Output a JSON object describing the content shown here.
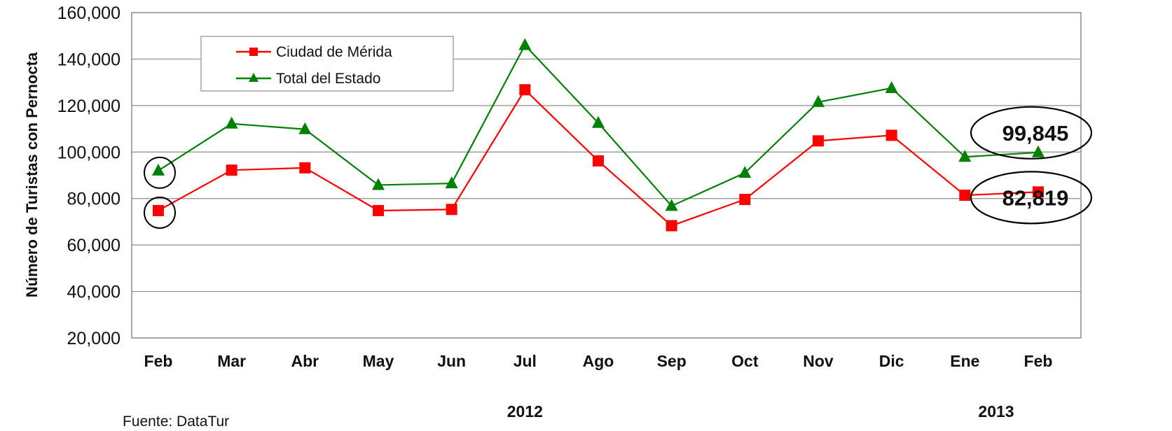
{
  "chart_data": {
    "type": "line",
    "ylabel": "Número de Turistas con Pernocta",
    "categories": [
      "Feb",
      "Mar",
      "Abr",
      "May",
      "Jun",
      "Jul",
      "Ago",
      "Sep",
      "Oct",
      "Nov",
      "Dic",
      "Ene",
      "Feb"
    ],
    "year_labels": [
      {
        "text": "2012",
        "category_index": 5
      },
      {
        "text": "2013",
        "category_index": 12
      }
    ],
    "ylim": [
      20000,
      160000
    ],
    "yticks": [
      20000,
      40000,
      60000,
      80000,
      100000,
      120000,
      140000,
      160000
    ],
    "ytick_labels": [
      "20,000",
      "40,000",
      "60,000",
      "80,000",
      "100,000",
      "120,000",
      "140,000",
      "160,000"
    ],
    "grid": true,
    "legend_position": "top-left",
    "series": [
      {
        "name": "Ciudad de Mérida",
        "color": "#ff0000",
        "marker": "square",
        "values": [
          74800,
          92200,
          93200,
          74800,
          75300,
          126800,
          96200,
          68300,
          79600,
          104800,
          107200,
          81400,
          82819
        ]
      },
      {
        "name": "Total del Estado",
        "color": "#008000",
        "marker": "triangle",
        "values": [
          92000,
          112200,
          109800,
          85800,
          86500,
          146000,
          112500,
          76800,
          91000,
          121500,
          127500,
          97900,
          99845
        ]
      }
    ],
    "annotations": [
      {
        "text": "99,845",
        "series_index": 1,
        "point_index": 12
      },
      {
        "text": "82,819",
        "series_index": 0,
        "point_index": 12
      }
    ],
    "source": "Fuente: DataTur"
  }
}
